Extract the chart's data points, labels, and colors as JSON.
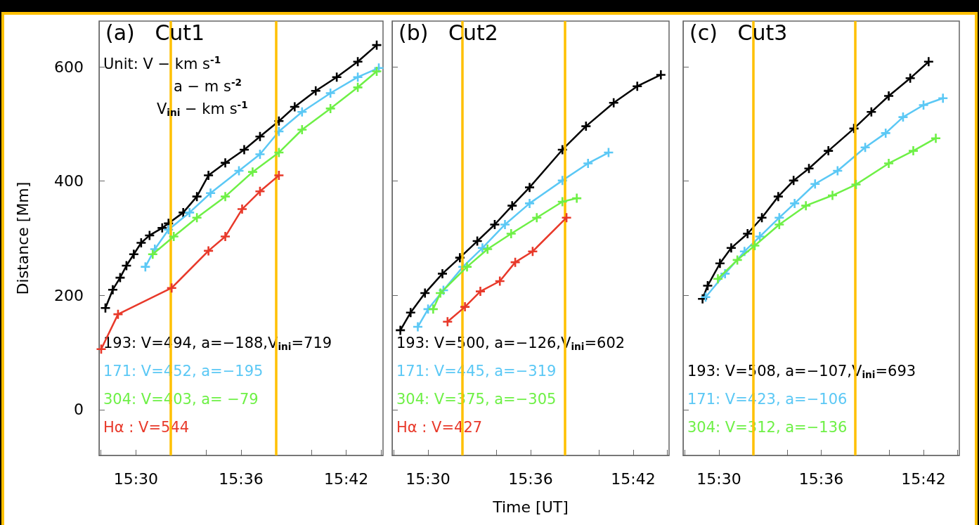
{
  "chart_data": [
    {
      "type": "line",
      "title": "(a)   Cut1",
      "ylabel": "Distance [Mm]",
      "marker": "cross",
      "line_style": "solid",
      "grid": false,
      "legend": "bottom left",
      "annotations": [
        "Unit: V − km s$^{-1}$",
        "a − m s$^{-2}$",
        "V$_{ini}$ − km s$^{-1}$"
      ],
      "xlim": [
        15.465,
        15.735
      ],
      "xticks": [
        {
          "value": 15.4667,
          "label": null
        },
        {
          "value": 15.5,
          "label": "15:30"
        },
        {
          "value": 15.5333,
          "label": null
        },
        {
          "value": 15.5667,
          "label": null
        },
        {
          "value": 15.6,
          "label": "15:36"
        },
        {
          "value": 15.6333,
          "label": null
        },
        {
          "value": 15.6667,
          "label": null
        },
        {
          "value": 15.7,
          "label": "15:42"
        },
        {
          "value": 15.7333,
          "label": null
        }
      ],
      "ylim": [
        -80,
        680
      ],
      "yticks": [
        0,
        200,
        400,
        600
      ],
      "ref_lines": [
        {
          "axis": "x",
          "value": 15.5333,
          "color": "#ffc000"
        },
        {
          "axis": "x",
          "value": 15.6333,
          "color": "#ffc000"
        }
      ],
      "series": [
        {
          "name": "193: V=494, a=−188,V$_{ini}$=719",
          "color": "#000000",
          "x": [
            15.471,
            15.478,
            15.485,
            15.491,
            15.498,
            15.505,
            15.513,
            15.525,
            15.531,
            15.545,
            15.558,
            15.569,
            15.585,
            15.603,
            15.618,
            15.636,
            15.651,
            15.671,
            15.691,
            15.711,
            15.729
          ],
          "values": [
            178,
            210,
            231,
            252,
            272,
            292,
            305,
            318,
            326,
            345,
            373,
            410,
            432,
            455,
            478,
            505,
            530,
            558,
            582,
            609,
            638
          ]
        },
        {
          "name": "171: V=452, a=−195",
          "color": "#5bc8f5",
          "x": [
            15.509,
            15.518,
            15.531,
            15.551,
            15.571,
            15.598,
            15.618,
            15.636,
            15.658,
            15.685,
            15.711,
            15.731
          ],
          "values": [
            250,
            281,
            315,
            345,
            379,
            418,
            447,
            487,
            521,
            554,
            582,
            598
          ]
        },
        {
          "name": "304: V=403, a= −79",
          "color": "#6ef046",
          "x": [
            15.516,
            15.536,
            15.558,
            15.585,
            15.611,
            15.636,
            15.658,
            15.685,
            15.711,
            15.729
          ],
          "values": [
            272,
            303,
            336,
            373,
            416,
            450,
            490,
            527,
            564,
            592
          ]
        },
        {
          "name": "Hα : V=544",
          "color": "#e8392a",
          "x": [
            15.467,
            15.483,
            15.534,
            15.569,
            15.585,
            15.601,
            15.618,
            15.636
          ],
          "values": [
            106,
            167,
            213,
            278,
            303,
            351,
            382,
            410
          ]
        }
      ]
    },
    {
      "type": "line",
      "title": "(b)   Cut2",
      "xlabel": "Time [UT]",
      "marker": "cross",
      "line_style": "solid",
      "grid": false,
      "legend": "bottom left",
      "tick_labels": "x",
      "xlim": [
        15.465,
        15.735
      ],
      "xticks": [
        {
          "value": 15.4667,
          "label": null
        },
        {
          "value": 15.5,
          "label": "15:30"
        },
        {
          "value": 15.5333,
          "label": null
        },
        {
          "value": 15.5667,
          "label": null
        },
        {
          "value": 15.6,
          "label": "15:36"
        },
        {
          "value": 15.6333,
          "label": null
        },
        {
          "value": 15.6667,
          "label": null
        },
        {
          "value": 15.7,
          "label": "15:42"
        },
        {
          "value": 15.7333,
          "label": null
        }
      ],
      "ylim": [
        -80,
        680
      ],
      "yticks": [
        0,
        200,
        400,
        600
      ],
      "ref_lines": [
        {
          "axis": "x",
          "value": 15.5333,
          "color": "#ffc000"
        },
        {
          "axis": "x",
          "value": 15.6333,
          "color": "#ffc000"
        }
      ],
      "series": [
        {
          "name": "193: V=500, a=−126,V$_{ini}$=602",
          "color": "#000000",
          "x": [
            15.473,
            15.483,
            15.497,
            15.514,
            15.531,
            15.548,
            15.565,
            15.582,
            15.599,
            15.631,
            15.654,
            15.681,
            15.704,
            15.727
          ],
          "values": [
            139,
            170,
            204,
            238,
            266,
            295,
            324,
            357,
            389,
            455,
            496,
            537,
            566,
            586
          ]
        },
        {
          "name": "171: V=445, a=−319",
          "color": "#5bc8f5",
          "x": [
            15.49,
            15.5,
            15.515,
            15.534,
            15.553,
            15.575,
            15.599,
            15.631,
            15.656,
            15.676
          ],
          "values": [
            145,
            176,
            209,
            250,
            283,
            324,
            361,
            401,
            431,
            450
          ]
        },
        {
          "name": "304: V=375, a=−305",
          "color": "#6ef046",
          "x": [
            15.505,
            15.512,
            15.538,
            15.558,
            15.581,
            15.606,
            15.631,
            15.645
          ],
          "values": [
            176,
            204,
            250,
            281,
            308,
            336,
            364,
            370
          ]
        },
        {
          "name": "Hα : V=427",
          "color": "#e8392a",
          "x": [
            15.519,
            15.536,
            15.551,
            15.57,
            15.585,
            15.602,
            15.635
          ],
          "values": [
            154,
            180,
            207,
            225,
            258,
            277,
            336
          ]
        }
      ]
    },
    {
      "type": "line",
      "title": "(c)   Cut3",
      "marker": "cross",
      "line_style": "solid",
      "grid": false,
      "legend": "bottom left",
      "tick_labels": "x",
      "xlim": [
        15.465,
        15.735
      ],
      "xticks": [
        {
          "value": 15.4667,
          "label": null
        },
        {
          "value": 15.5,
          "label": "15:30"
        },
        {
          "value": 15.5333,
          "label": null
        },
        {
          "value": 15.5667,
          "label": null
        },
        {
          "value": 15.6,
          "label": "15:36"
        },
        {
          "value": 15.6333,
          "label": null
        },
        {
          "value": 15.6667,
          "label": null
        },
        {
          "value": 15.7,
          "label": "15:42"
        },
        {
          "value": 15.7333,
          "label": null
        }
      ],
      "ylim": [
        -80,
        680
      ],
      "yticks": [
        0,
        200,
        400,
        600
      ],
      "ref_lines": [
        {
          "axis": "x",
          "value": 15.5333,
          "color": "#ffc000"
        },
        {
          "axis": "x",
          "value": 15.6333,
          "color": "#ffc000"
        }
      ],
      "series": [
        {
          "name": "193: V=508, a=−107,V$_{ini}$=693",
          "color": "#000000",
          "x": [
            15.484,
            15.489,
            15.501,
            15.512,
            15.528,
            15.542,
            15.558,
            15.573,
            15.588,
            15.607,
            15.632,
            15.649,
            15.666,
            15.687,
            15.705
          ],
          "values": [
            194,
            217,
            256,
            283,
            308,
            336,
            373,
            401,
            422,
            453,
            492,
            521,
            549,
            580,
            609
          ]
        },
        {
          "name": "171: V=423, a=−106",
          "color": "#5bc8f5",
          "x": [
            15.487,
            15.506,
            15.525,
            15.54,
            15.559,
            15.574,
            15.594,
            15.616,
            15.643,
            15.663,
            15.68,
            15.7,
            15.719
          ],
          "values": [
            197,
            238,
            277,
            303,
            336,
            361,
            395,
            418,
            459,
            484,
            512,
            533,
            545
          ]
        },
        {
          "name": "304: V=312, a=−136",
          "color": "#6ef046",
          "x": [
            15.499,
            15.518,
            15.535,
            15.559,
            15.585,
            15.611,
            15.634,
            15.666,
            15.69,
            15.712
          ],
          "values": [
            229,
            262,
            287,
            324,
            357,
            375,
            394,
            431,
            453,
            475
          ]
        }
      ]
    }
  ]
}
